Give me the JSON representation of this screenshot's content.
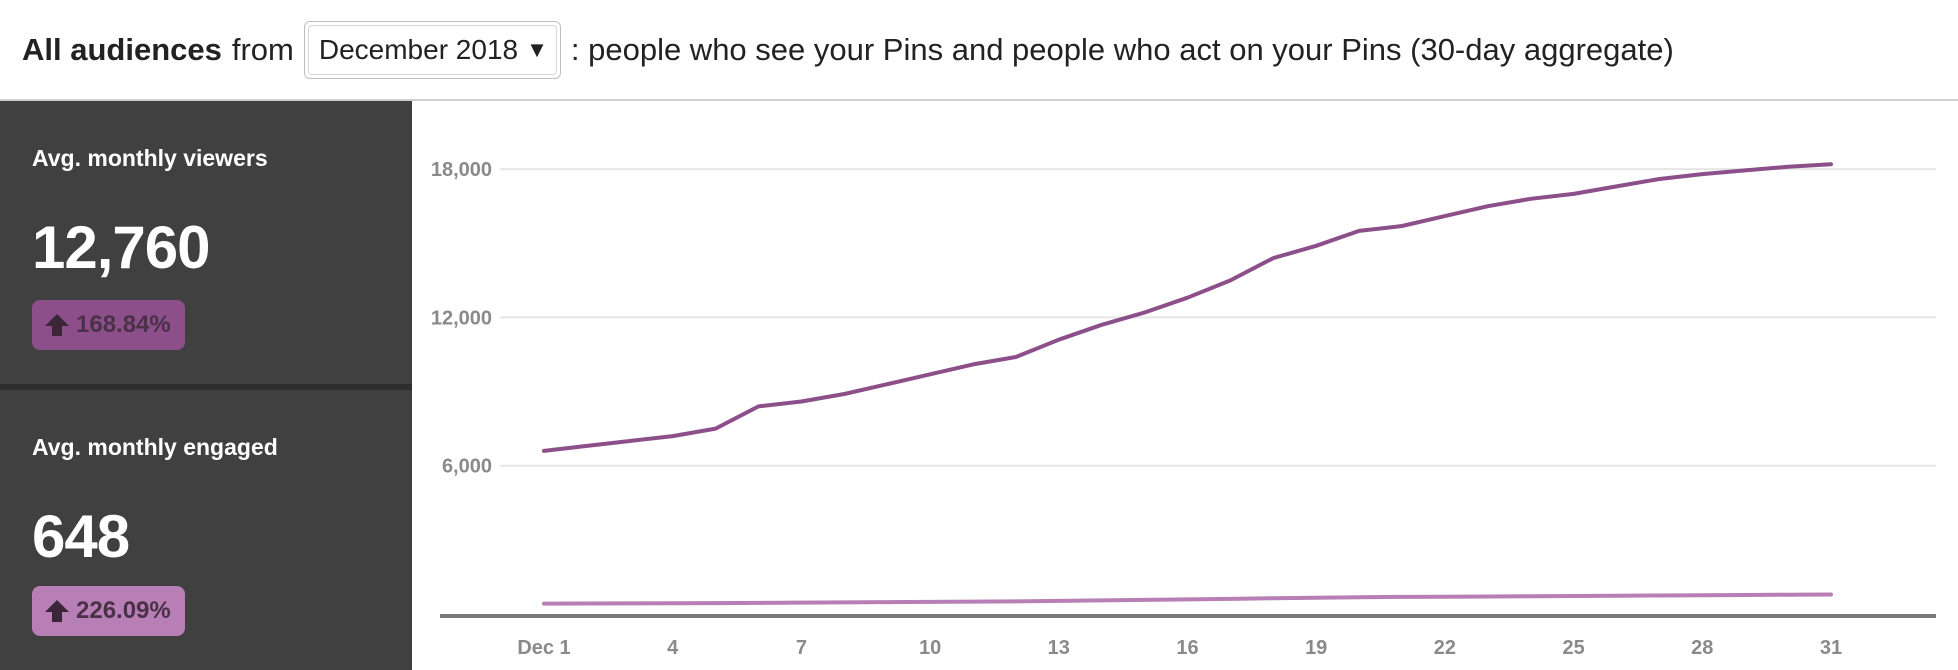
{
  "header": {
    "title_bold": "All audiences",
    "from_text": "from",
    "period_selected": "December 2018",
    "description": ": people who see your Pins and people who act on your Pins (30-day aggregate)"
  },
  "metrics": [
    {
      "label": "Avg. monthly viewers",
      "value": "12,760",
      "change": "168.84%",
      "arrow_icon": "up-arrow-icon",
      "color": "#8c4f8a"
    },
    {
      "label": "Avg. monthly engaged",
      "value": "648",
      "change": "226.09%",
      "arrow_icon": "up-arrow-icon",
      "color": "#b77fb5"
    }
  ],
  "chart_data": {
    "type": "line",
    "x_tick_labels": [
      "Dec 1",
      "4",
      "7",
      "10",
      "13",
      "16",
      "19",
      "22",
      "25",
      "28",
      "31"
    ],
    "ylim": [
      0,
      21000
    ],
    "y_ticks": [
      6000,
      12000,
      18000
    ],
    "y_tick_labels": [
      "6,000",
      "12,000",
      "18,000"
    ],
    "grid": true,
    "x": [
      1,
      2,
      3,
      4,
      5,
      6,
      7,
      8,
      9,
      10,
      11,
      12,
      13,
      14,
      15,
      16,
      17,
      18,
      19,
      20,
      21,
      22,
      23,
      24,
      25,
      26,
      27,
      28,
      29,
      30,
      31
    ],
    "series": [
      {
        "color": "#8c4f8a",
        "values": [
          6600,
          6800,
          7000,
          7200,
          7500,
          8400,
          8600,
          8900,
          9300,
          9700,
          10100,
          10400,
          11100,
          11700,
          12200,
          12800,
          13500,
          14400,
          14900,
          15500,
          15700,
          16100,
          16500,
          16800,
          17000,
          17300,
          17600,
          17800,
          17950,
          18100,
          18200
        ]
      },
      {
        "color": "#b77fb5",
        "values": [
          420,
          425,
          430,
          435,
          440,
          450,
          460,
          470,
          480,
          490,
          500,
          510,
          530,
          550,
          570,
          590,
          610,
          640,
          660,
          680,
          690,
          700,
          710,
          720,
          730,
          740,
          750,
          760,
          770,
          780,
          790
        ]
      }
    ]
  }
}
